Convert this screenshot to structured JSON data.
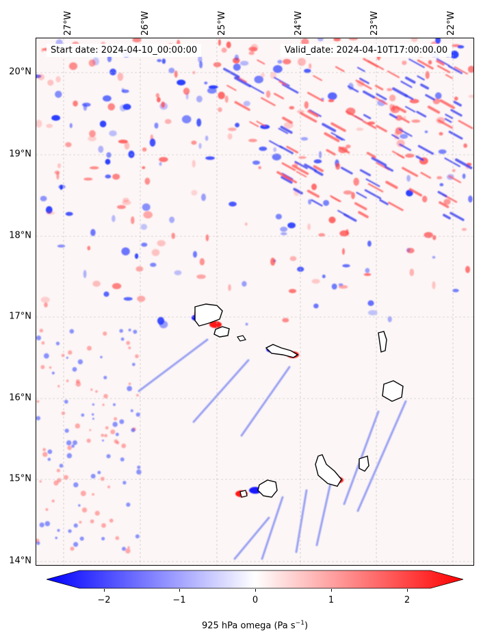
{
  "info": {
    "start_date": "Start date: 2024-04-10_00:00:00",
    "valid_date": "Valid_date: 2024-04-10T17:00:00.00"
  },
  "lat_labels": [
    "20°N",
    "19°N",
    "18°N",
    "17°N",
    "16°N",
    "15°N",
    "14°N"
  ],
  "lon_labels": [
    "27°W",
    "26°W",
    "25°W",
    "24°W",
    "23°W",
    "22°W"
  ],
  "colorbar": {
    "label_main": "925 hPa omega (Pa s",
    "label_exp": "−1",
    "label_close": ")",
    "ticks": [
      "−2",
      "−1",
      "0",
      "1",
      "2"
    ],
    "range": [
      -2.7,
      2.7
    ],
    "colors": {
      "negative": "#0000ff",
      "mid": "#ffffff",
      "positive": "#ff0000"
    }
  },
  "chart_data": {
    "type": "heatmap",
    "variable": "925 hPa omega",
    "units": "Pa s−1",
    "lat_range": [
      13.95,
      20.4
    ],
    "lon_range": [
      -27.35,
      -21.75
    ],
    "extend": "both",
    "grid": true
  }
}
